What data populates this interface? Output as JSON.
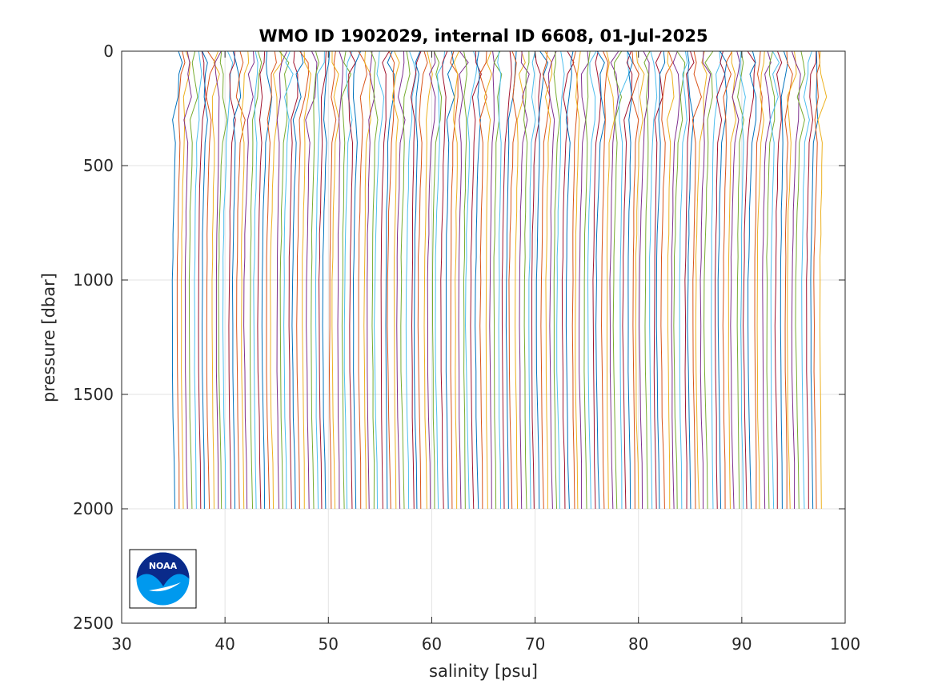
{
  "chart_data": {
    "type": "line",
    "title": "WMO ID 1902029, internal ID 6608, 01-Jul-2025",
    "xlabel": "salinity [psu]",
    "ylabel": "pressure [dbar]",
    "xlim": [
      30,
      100
    ],
    "ylim": [
      0,
      2500
    ],
    "y_reversed": true,
    "grid": true,
    "xticks": [
      "30",
      "40",
      "50",
      "60",
      "70",
      "80",
      "90",
      "100"
    ],
    "yticks": [
      "0",
      "500",
      "1000",
      "1500",
      "2000",
      "2500"
    ],
    "xtick_values": [
      30,
      40,
      50,
      60,
      70,
      80,
      90,
      100
    ],
    "ytick_values": [
      0,
      500,
      1000,
      1500,
      2000,
      2500
    ],
    "colors": [
      "#0072bd",
      "#d95319",
      "#edb120",
      "#7e2f8e",
      "#77ac30",
      "#4dbeee",
      "#a2142f"
    ],
    "profiles": {
      "count": 150,
      "base_salinity": 35.3,
      "offset_step_psu": 0.42,
      "max_pressure_dbar": 2000,
      "pressure_levels_dbar": [
        0,
        50,
        100,
        200,
        300,
        400,
        500,
        600,
        700,
        800,
        900,
        1000,
        1200,
        1400,
        1600,
        1800,
        2000
      ],
      "salinity_anomaly_psu": [
        0.0,
        0.1,
        0.05,
        -0.05,
        -0.15,
        -0.25,
        -0.35,
        -0.45,
        -0.55,
        -0.62,
        -0.68,
        -0.72,
        -0.75,
        -0.7,
        -0.6,
        -0.45,
        -0.35
      ]
    },
    "logo": "noaa-logo",
    "logo_text": "NOAA"
  }
}
